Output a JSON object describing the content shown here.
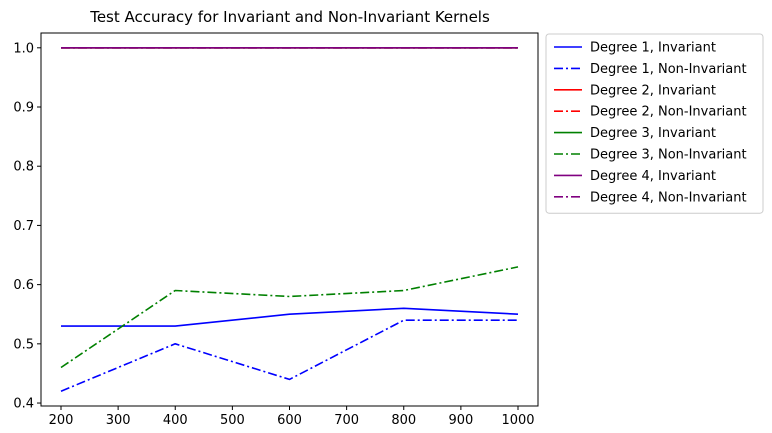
{
  "chart_data": {
    "type": "line",
    "title": "Test Accuracy for Invariant and Non-Invariant Kernels",
    "xlabel": "",
    "ylabel": "",
    "x": [
      200,
      400,
      600,
      800,
      1000
    ],
    "xlim": [
      165,
      1035
    ],
    "ylim": [
      0.395,
      1.025
    ],
    "xticks": [
      200,
      300,
      400,
      500,
      600,
      700,
      800,
      900,
      1000
    ],
    "yticks": [
      0.4,
      0.5,
      0.6,
      0.7,
      0.8,
      0.9,
      1.0
    ],
    "ytick_labels": [
      "0.4",
      "0.5",
      "0.6",
      "0.7",
      "0.8",
      "0.9",
      "1.0"
    ],
    "grid": false,
    "legend_position": "outside upper right",
    "series": [
      {
        "name": "Degree 1, Invariant",
        "color": "#0000ff",
        "style": "solid",
        "values": [
          0.53,
          0.53,
          0.55,
          0.56,
          0.55
        ]
      },
      {
        "name": "Degree 1, Non-Invariant",
        "color": "#0000ff",
        "style": "dashdot",
        "values": [
          0.42,
          0.5,
          0.44,
          0.54,
          0.54
        ]
      },
      {
        "name": "Degree 2, Invariant",
        "color": "#ff0000",
        "style": "solid",
        "values": [
          1.0,
          1.0,
          1.0,
          1.0,
          1.0
        ]
      },
      {
        "name": "Degree 2, Non-Invariant",
        "color": "#ff0000",
        "style": "dashdot",
        "values": [
          1.0,
          1.0,
          1.0,
          1.0,
          1.0
        ]
      },
      {
        "name": "Degree 3, Invariant",
        "color": "#008000",
        "style": "solid",
        "values": [
          1.0,
          1.0,
          1.0,
          1.0,
          1.0
        ]
      },
      {
        "name": "Degree 3, Non-Invariant",
        "color": "#008000",
        "style": "dashdot",
        "values": [
          0.46,
          0.59,
          0.58,
          0.59,
          0.63
        ]
      },
      {
        "name": "Degree 4, Invariant",
        "color": "#800080",
        "style": "solid",
        "values": [
          1.0,
          1.0,
          1.0,
          1.0,
          1.0
        ]
      },
      {
        "name": "Degree 4, Non-Invariant",
        "color": "#800080",
        "style": "dashdot",
        "values": [
          1.0,
          1.0,
          1.0,
          1.0,
          1.0
        ]
      }
    ]
  }
}
